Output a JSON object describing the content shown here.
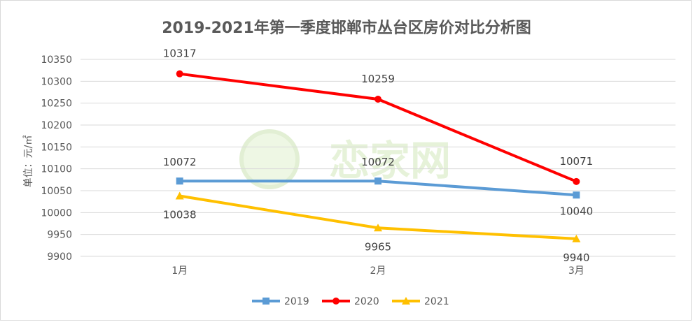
{
  "chart_data": {
    "type": "line",
    "title": "2019-2021年第一季度邯郸市丛台区房价对比分析图",
    "xlabel": "",
    "ylabel": "单位：元/㎡",
    "categories": [
      "1月",
      "2月",
      "3月"
    ],
    "y_ticks": [
      "10350",
      "10300",
      "10250",
      "10200",
      "10150",
      "10100",
      "10050",
      "10000",
      "9950",
      "9900"
    ],
    "ylim": [
      9900,
      10350
    ],
    "grid": true,
    "legend_position": "bottom",
    "series": [
      {
        "name": "2019",
        "values": [
          10072,
          10072,
          10040
        ],
        "color": "#5b9bd5",
        "marker": "square"
      },
      {
        "name": "2020",
        "values": [
          10317,
          10259,
          10071
        ],
        "color": "#ff0000",
        "marker": "circle"
      },
      {
        "name": "2021",
        "values": [
          10038,
          9965,
          9940
        ],
        "color": "#ffc000",
        "marker": "triangle"
      }
    ]
  }
}
